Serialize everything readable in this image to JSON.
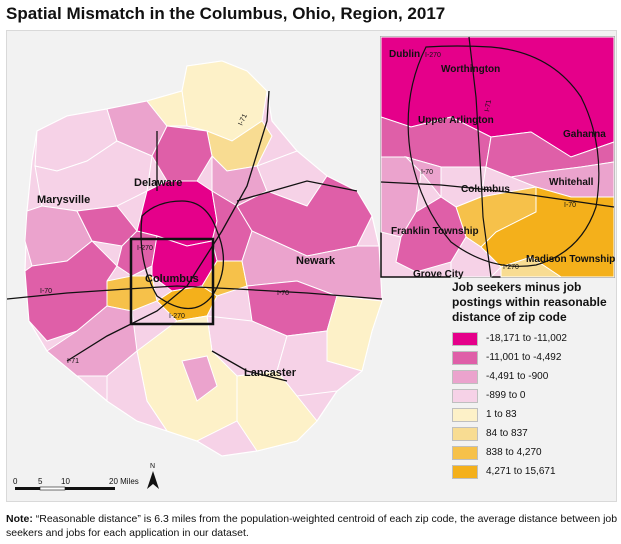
{
  "title": "Spatial Mismatch in the Columbus, Ohio, Region, 2017",
  "colors": {
    "bin1": "#e5008a",
    "bin2": "#df5fa8",
    "bin3": "#eba3cd",
    "bin4": "#f6d2e7",
    "bin5": "#fdf1c8",
    "bin6": "#f8dc92",
    "bin7": "#f6c14a",
    "bin8": "#f4b01b"
  },
  "legend": {
    "title": "Job seekers minus job postings within reasonable distance of zip code",
    "items": [
      {
        "label": "-18,171 to -11,002",
        "color": "#e5008a"
      },
      {
        "label": "-11,001 to -4,492",
        "color": "#df5fa8"
      },
      {
        "label": "-4,491 to -900",
        "color": "#eba3cd"
      },
      {
        "label": "-899 to 0",
        "color": "#f6d2e7"
      },
      {
        "label": "1 to 83",
        "color": "#fdf1c8"
      },
      {
        "label": "84 to 837",
        "color": "#f8dc92"
      },
      {
        "label": "838 to 4,270",
        "color": "#f6c14a"
      },
      {
        "label": "4,271 to 15,671",
        "color": "#f4b01b"
      }
    ]
  },
  "places": {
    "marysville": "Marysville",
    "delaware": "Delaware",
    "newark": "Newark",
    "columbus": "Columbus",
    "lancaster": "Lancaster"
  },
  "inset_places": {
    "dublin": "Dublin",
    "worthington": "Worthington",
    "upper_arlington": "Upper Arlington",
    "gahanna": "Gahanna",
    "whitehall": "Whitehall",
    "columbus": "Columbus",
    "franklin_township": "Franklin Township",
    "madison_township": "Madison Township",
    "grove_city": "Grove City"
  },
  "roads": {
    "i71": "I-71",
    "i70": "I-70",
    "i270": "I-270"
  },
  "scale": {
    "ticks": [
      "0",
      "5",
      "10",
      "20 Miles"
    ]
  },
  "north": "N",
  "note": {
    "label": "Note:",
    "text": " “Reasonable distance” is 6.3 miles from the population-weighted centroid of each zip code, the average distance between job seekers and jobs for each application in our dataset."
  }
}
